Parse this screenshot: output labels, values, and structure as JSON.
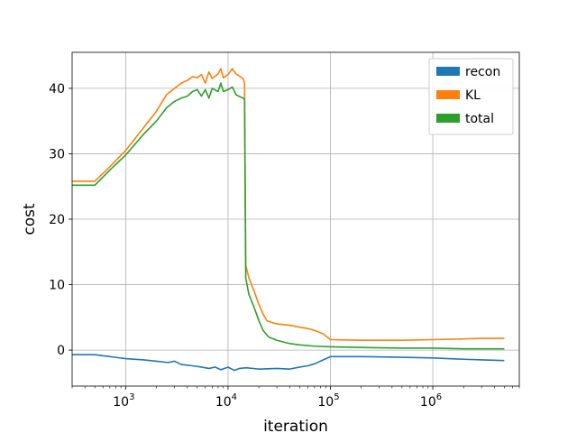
{
  "chart_data": {
    "type": "line",
    "title": "",
    "xlabel": "iteration",
    "ylabel": "cost",
    "xscale": "log",
    "xlim": [
      300,
      7000000
    ],
    "ylim": [
      -5.5,
      45.5
    ],
    "grid": true,
    "legend_position": "top-right",
    "x_ticks": [
      {
        "value": 1000,
        "base": "10",
        "exp": "3"
      },
      {
        "value": 10000,
        "base": "10",
        "exp": "4"
      },
      {
        "value": 100000,
        "base": "10",
        "exp": "5"
      },
      {
        "value": 1000000,
        "base": "10",
        "exp": "6"
      }
    ],
    "y_ticks": [
      0,
      10,
      20,
      30,
      40
    ],
    "series": [
      {
        "name": "recon",
        "color": "#1f77b4",
        "points": [
          [
            300,
            -0.7
          ],
          [
            500,
            -0.7
          ],
          [
            700,
            -1.0
          ],
          [
            1000,
            -1.3
          ],
          [
            1500,
            -1.5
          ],
          [
            2000,
            -1.7
          ],
          [
            2600,
            -1.9
          ],
          [
            3000,
            -1.7
          ],
          [
            3500,
            -2.2
          ],
          [
            4500,
            -2.4
          ],
          [
            5500,
            -2.6
          ],
          [
            6500,
            -2.8
          ],
          [
            7500,
            -2.6
          ],
          [
            8500,
            -3.0
          ],
          [
            10000,
            -2.6
          ],
          [
            11500,
            -3.1
          ],
          [
            13000,
            -2.8
          ],
          [
            15000,
            -2.7
          ],
          [
            20000,
            -2.9
          ],
          [
            30000,
            -2.8
          ],
          [
            40000,
            -2.9
          ],
          [
            50000,
            -2.6
          ],
          [
            60000,
            -2.4
          ],
          [
            70000,
            -2.1
          ],
          [
            85000,
            -1.5
          ],
          [
            100000,
            -1.0
          ],
          [
            200000,
            -1.0
          ],
          [
            500000,
            -1.1
          ],
          [
            1000000,
            -1.2
          ],
          [
            2000000,
            -1.4
          ],
          [
            3000000,
            -1.5
          ],
          [
            5000000,
            -1.6
          ]
        ]
      },
      {
        "name": "KL",
        "color": "#ff7f0e",
        "points": [
          [
            300,
            25.8
          ],
          [
            500,
            25.8
          ],
          [
            700,
            28.0
          ],
          [
            1000,
            30.5
          ],
          [
            1500,
            34.0
          ],
          [
            2000,
            36.5
          ],
          [
            2500,
            39.0
          ],
          [
            3000,
            40.0
          ],
          [
            3500,
            40.8
          ],
          [
            4000,
            41.2
          ],
          [
            4500,
            41.8
          ],
          [
            5000,
            41.6
          ],
          [
            5500,
            42.1
          ],
          [
            6000,
            40.8
          ],
          [
            6500,
            42.5
          ],
          [
            7000,
            41.5
          ],
          [
            8000,
            42.2
          ],
          [
            8500,
            43.0
          ],
          [
            9000,
            41.6
          ],
          [
            10000,
            42.1
          ],
          [
            11000,
            43.0
          ],
          [
            12000,
            42.2
          ],
          [
            14000,
            41.5
          ],
          [
            14500,
            40.8
          ],
          [
            14900,
            13.0
          ],
          [
            16000,
            11.0
          ],
          [
            18000,
            9.0
          ],
          [
            20000,
            7.0
          ],
          [
            22000,
            5.5
          ],
          [
            24000,
            4.5
          ],
          [
            27000,
            4.2
          ],
          [
            30000,
            4.0
          ],
          [
            40000,
            3.8
          ],
          [
            50000,
            3.5
          ],
          [
            60000,
            3.3
          ],
          [
            70000,
            3.0
          ],
          [
            85000,
            2.5
          ],
          [
            100000,
            1.6
          ],
          [
            200000,
            1.5
          ],
          [
            500000,
            1.5
          ],
          [
            1000000,
            1.6
          ],
          [
            2000000,
            1.7
          ],
          [
            3000000,
            1.8
          ],
          [
            5000000,
            1.8
          ]
        ]
      },
      {
        "name": "total",
        "color": "#2ca02c",
        "points": [
          [
            300,
            25.2
          ],
          [
            500,
            25.2
          ],
          [
            700,
            27.5
          ],
          [
            1000,
            29.8
          ],
          [
            1500,
            33.0
          ],
          [
            2000,
            35.0
          ],
          [
            2500,
            37.0
          ],
          [
            3000,
            38.0
          ],
          [
            3500,
            38.5
          ],
          [
            4000,
            38.8
          ],
          [
            4500,
            39.5
          ],
          [
            5000,
            39.8
          ],
          [
            5500,
            38.8
          ],
          [
            6000,
            39.8
          ],
          [
            6500,
            38.5
          ],
          [
            7000,
            40.0
          ],
          [
            8000,
            39.5
          ],
          [
            8500,
            40.8
          ],
          [
            9000,
            39.5
          ],
          [
            10000,
            39.8
          ],
          [
            11000,
            40.2
          ],
          [
            12000,
            39.0
          ],
          [
            14000,
            38.5
          ],
          [
            14500,
            38.3
          ],
          [
            14900,
            11.0
          ],
          [
            16000,
            8.5
          ],
          [
            18000,
            6.5
          ],
          [
            20000,
            4.5
          ],
          [
            22000,
            3.0
          ],
          [
            25000,
            2.0
          ],
          [
            30000,
            1.5
          ],
          [
            40000,
            1.0
          ],
          [
            50000,
            0.8
          ],
          [
            70000,
            0.6
          ],
          [
            100000,
            0.5
          ],
          [
            200000,
            0.4
          ],
          [
            500000,
            0.3
          ],
          [
            1000000,
            0.3
          ],
          [
            2000000,
            0.2
          ],
          [
            5000000,
            0.2
          ]
        ]
      }
    ]
  }
}
